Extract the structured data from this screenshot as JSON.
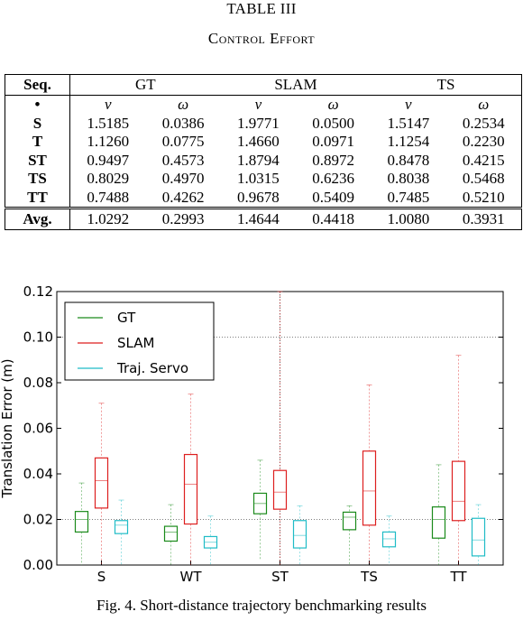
{
  "table": {
    "number": "TABLE III",
    "title": "Control Effort",
    "header": [
      "Seq.",
      "GT",
      "SLAM",
      "TS"
    ],
    "subheader": [
      "•",
      "v",
      "ω",
      "v",
      "ω",
      "v",
      "ω"
    ],
    "rows": [
      [
        "S",
        "1.5185",
        "0.0386",
        "1.9771",
        "0.0500",
        "1.5147",
        "0.2534"
      ],
      [
        "T",
        "1.1260",
        "0.0775",
        "1.4660",
        "0.0971",
        "1.1254",
        "0.2230"
      ],
      [
        "ST",
        "0.9497",
        "0.4573",
        "1.8794",
        "0.8972",
        "0.8478",
        "0.4215"
      ],
      [
        "TS",
        "0.8029",
        "0.4970",
        "1.0315",
        "0.6236",
        "0.8038",
        "0.5468"
      ],
      [
        "TT",
        "0.7488",
        "0.4262",
        "0.9678",
        "0.5409",
        "0.7485",
        "0.5210"
      ]
    ],
    "avg": [
      "Avg.",
      "1.0292",
      "0.2993",
      "1.4644",
      "0.4418",
      "1.0080",
      "0.3931"
    ]
  },
  "chart_data": {
    "type": "box",
    "title": "",
    "xlabel": "",
    "ylabel": "Translation Error (m)",
    "ylim": [
      0,
      0.12
    ],
    "yticks": [
      "0.00",
      "0.02",
      "0.04",
      "0.06",
      "0.08",
      "0.10",
      "0.12"
    ],
    "categories": [
      "S",
      "WT",
      "ST",
      "TS",
      "TT"
    ],
    "legend_position": "top-left",
    "series": [
      {
        "name": "GT",
        "color": "#1a8a1a",
        "boxes": [
          {
            "min": 0.0,
            "q1": 0.0145,
            "median": 0.02,
            "q3": 0.0235,
            "max": 0.036
          },
          {
            "min": 0.0,
            "q1": 0.0105,
            "median": 0.0145,
            "q3": 0.017,
            "max": 0.0265
          },
          {
            "min": 0.0025,
            "q1": 0.0225,
            "median": 0.027,
            "q3": 0.0315,
            "max": 0.046
          },
          {
            "min": 0.0,
            "q1": 0.0155,
            "median": 0.021,
            "q3": 0.0232,
            "max": 0.026
          },
          {
            "min": 0.0,
            "q1": 0.0118,
            "median": 0.02,
            "q3": 0.0255,
            "max": 0.044
          }
        ]
      },
      {
        "name": "SLAM",
        "color": "#dd1f1f",
        "boxes": [
          {
            "min": 0.0,
            "q1": 0.025,
            "median": 0.037,
            "q3": 0.047,
            "max": 0.071
          },
          {
            "min": 0.0,
            "q1": 0.018,
            "median": 0.0355,
            "q3": 0.0485,
            "max": 0.075
          },
          {
            "min": 0.0,
            "q1": 0.0245,
            "median": 0.032,
            "q3": 0.0415,
            "max": 0.12
          },
          {
            "min": 0.0,
            "q1": 0.0175,
            "median": 0.0325,
            "q3": 0.05,
            "max": 0.079
          },
          {
            "min": 0.0,
            "q1": 0.0195,
            "median": 0.028,
            "q3": 0.0455,
            "max": 0.092
          }
        ]
      },
      {
        "name": "Traj. Servo",
        "color": "#1fbcc6",
        "boxes": [
          {
            "min": 0.0,
            "q1": 0.0138,
            "median": 0.0175,
            "q3": 0.0195,
            "max": 0.0285
          },
          {
            "min": 0.0,
            "q1": 0.0075,
            "median": 0.01,
            "q3": 0.0125,
            "max": 0.0215
          },
          {
            "min": 0.0,
            "q1": 0.0075,
            "median": 0.013,
            "q3": 0.0195,
            "max": 0.026
          },
          {
            "min": 0.0,
            "q1": 0.008,
            "median": 0.0115,
            "q3": 0.0145,
            "max": 0.0215
          },
          {
            "min": 0.0,
            "q1": 0.004,
            "median": 0.011,
            "q3": 0.0205,
            "max": 0.0265
          }
        ]
      }
    ]
  },
  "figure_caption": "Fig. 4.    Short-distance trajectory benchmarking results"
}
